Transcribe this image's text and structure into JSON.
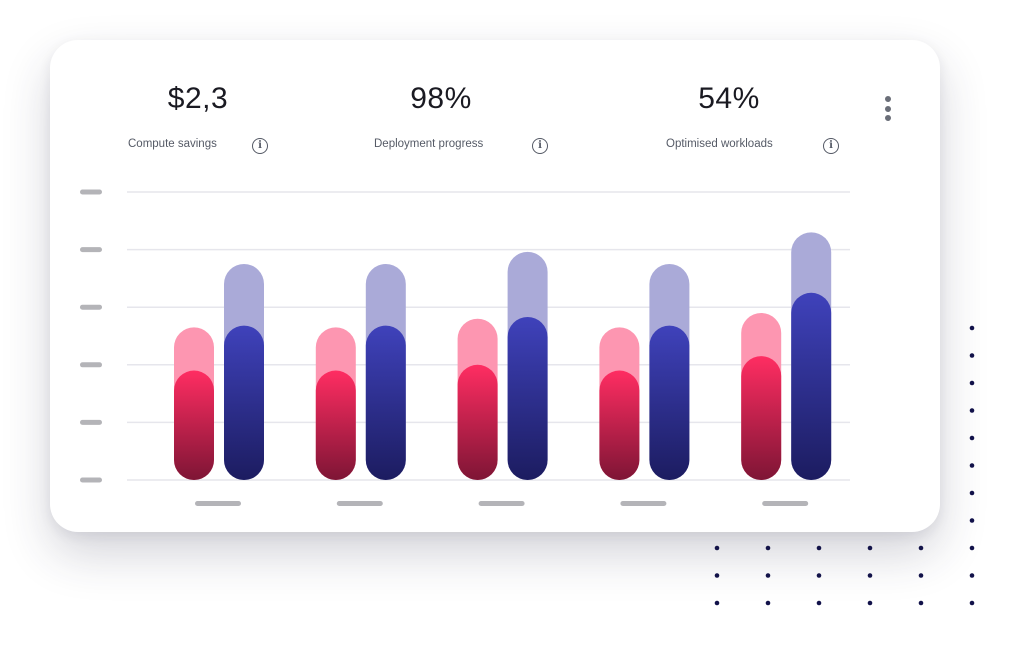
{
  "stats": [
    {
      "value": "$2,3",
      "label": "Compute savings"
    },
    {
      "value": "98%",
      "label": "Deployment progress"
    },
    {
      "value": "54%",
      "label": "Optimised workloads"
    }
  ],
  "icons": {
    "info": "info-icon",
    "menu": "more-vertical-icon"
  },
  "chart_data": {
    "type": "bar",
    "ylim": [
      0,
      5
    ],
    "grid": true,
    "categories": [
      "",
      "",
      "",
      "",
      ""
    ],
    "series": [
      {
        "role": "pink-back",
        "color": "#fd96b1",
        "values": [
          2.65,
          2.65,
          2.8,
          2.65,
          2.9
        ]
      },
      {
        "role": "pink-front",
        "color": "#e02758",
        "values": [
          1.9,
          1.9,
          2.0,
          1.9,
          2.15
        ]
      },
      {
        "role": "blue-back",
        "color": "#aaaad8",
        "values": [
          3.75,
          3.75,
          3.96,
          3.75,
          4.3
        ]
      },
      {
        "role": "blue-front",
        "color": "#3b3db5",
        "values": [
          2.68,
          2.68,
          2.83,
          2.68,
          3.25
        ]
      }
    ]
  }
}
